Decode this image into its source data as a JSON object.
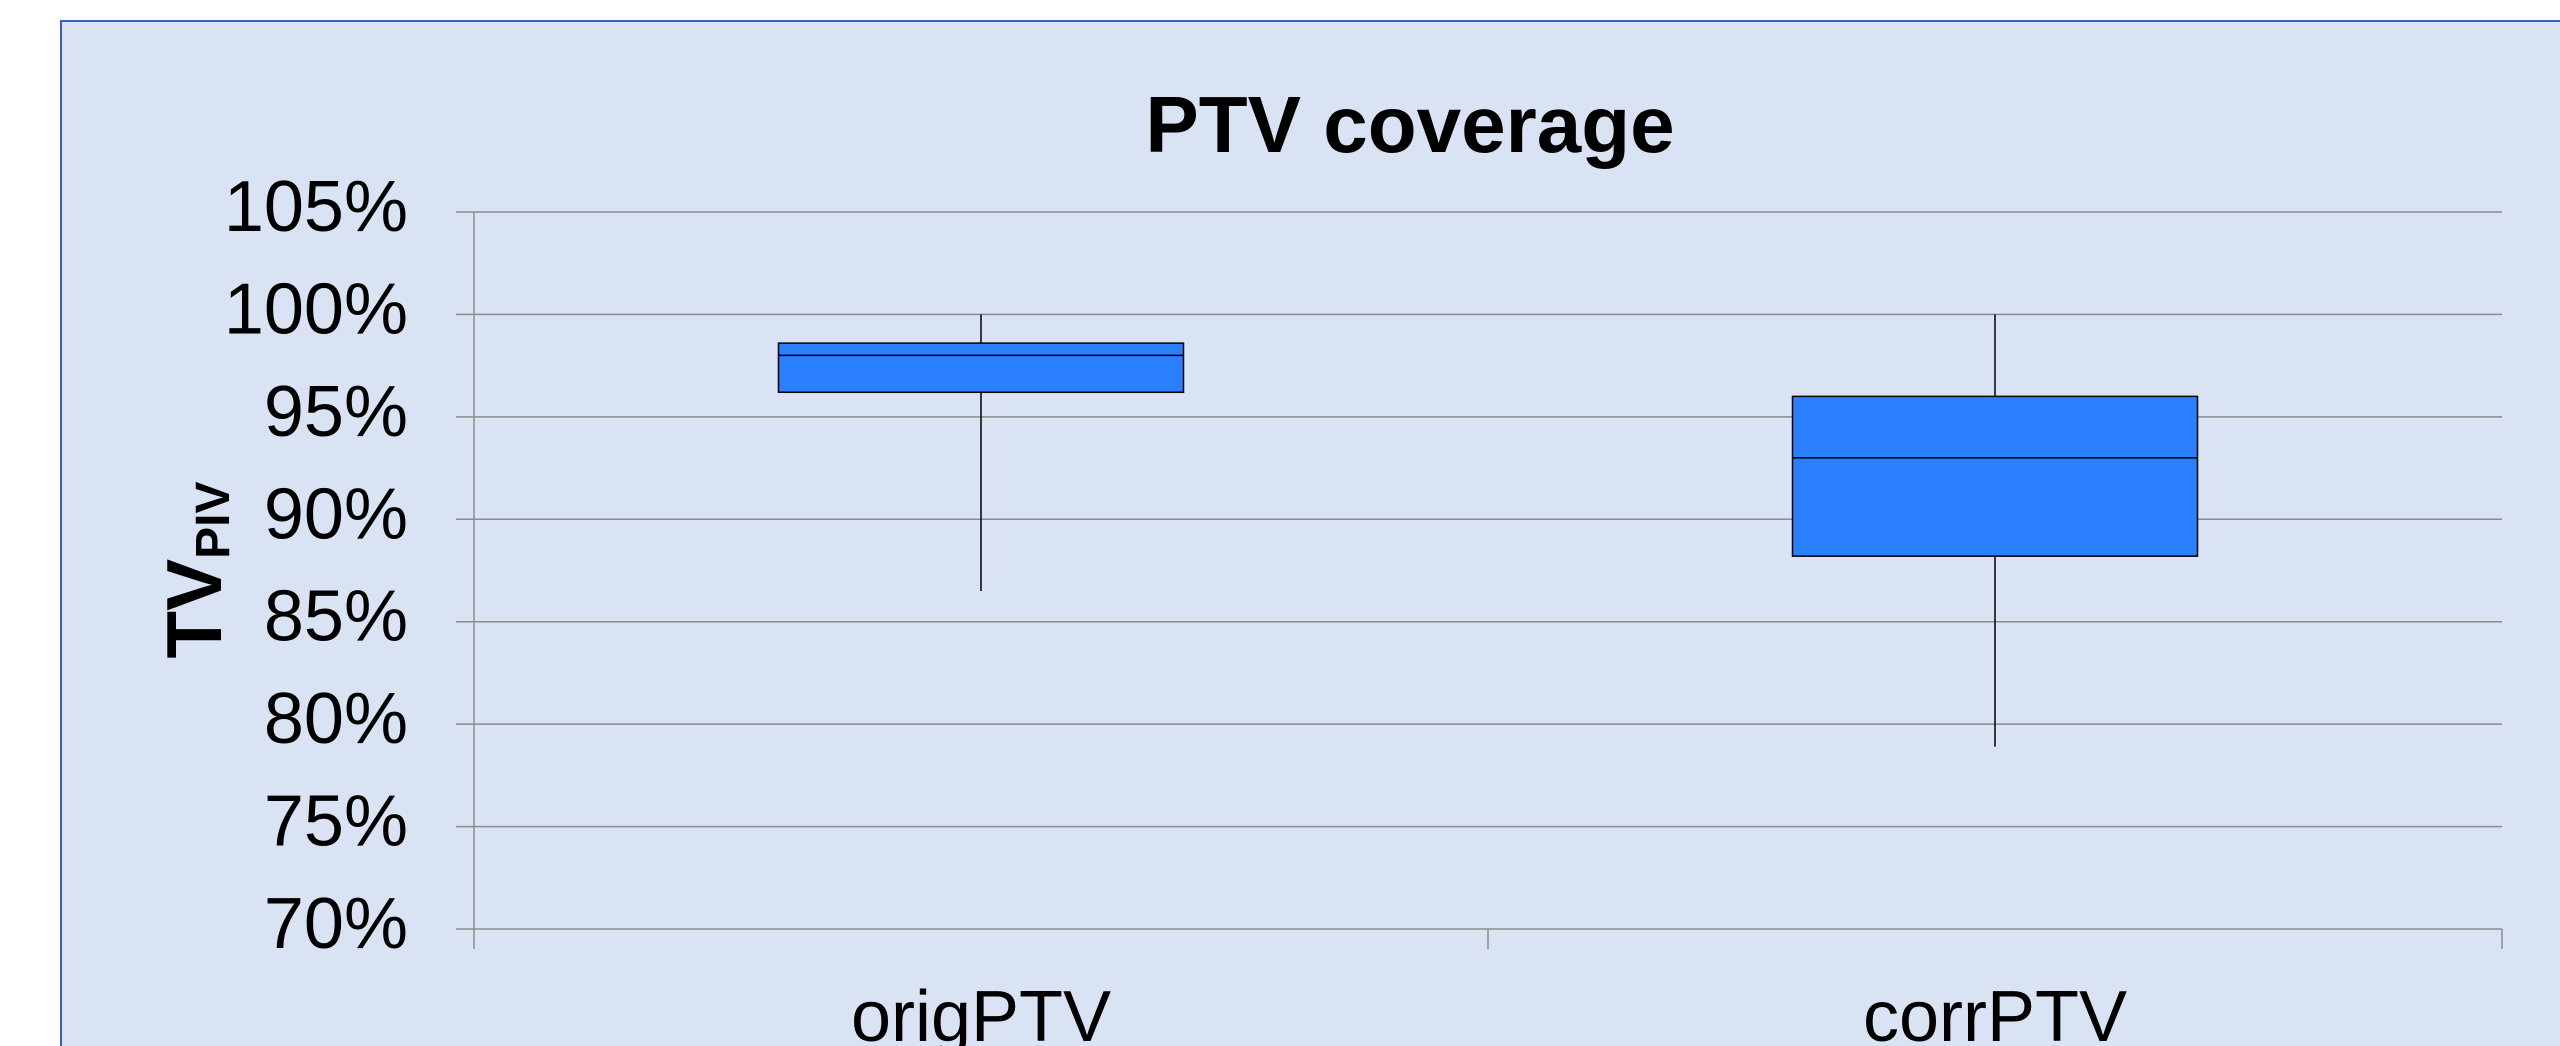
{
  "chart_data": {
    "type": "box",
    "title": "PTV coverage",
    "y_label": {
      "main": "TV",
      "sub": "PIV"
    },
    "categories": [
      "origPTV",
      "corrPTV"
    ],
    "boxes": [
      {
        "min": 86.5,
        "q1": 96.2,
        "median": 98,
        "q3": 98.6,
        "max": 100
      },
      {
        "min": 78.9,
        "q1": 88.2,
        "median": 93,
        "q3": 96,
        "max": 100
      }
    ],
    "color": "#2a7fff",
    "ylim": [
      70,
      105
    ],
    "yticks": [
      {
        "value": 70,
        "label": "70%"
      },
      {
        "value": 75,
        "label": "75%"
      },
      {
        "value": 80,
        "label": "80%"
      },
      {
        "value": 85,
        "label": "85%"
      },
      {
        "value": 90,
        "label": "90%"
      },
      {
        "value": 95,
        "label": "95%"
      },
      {
        "value": 100,
        "label": "100%"
      },
      {
        "value": 105,
        "label": "105%"
      }
    ],
    "grid": true
  }
}
